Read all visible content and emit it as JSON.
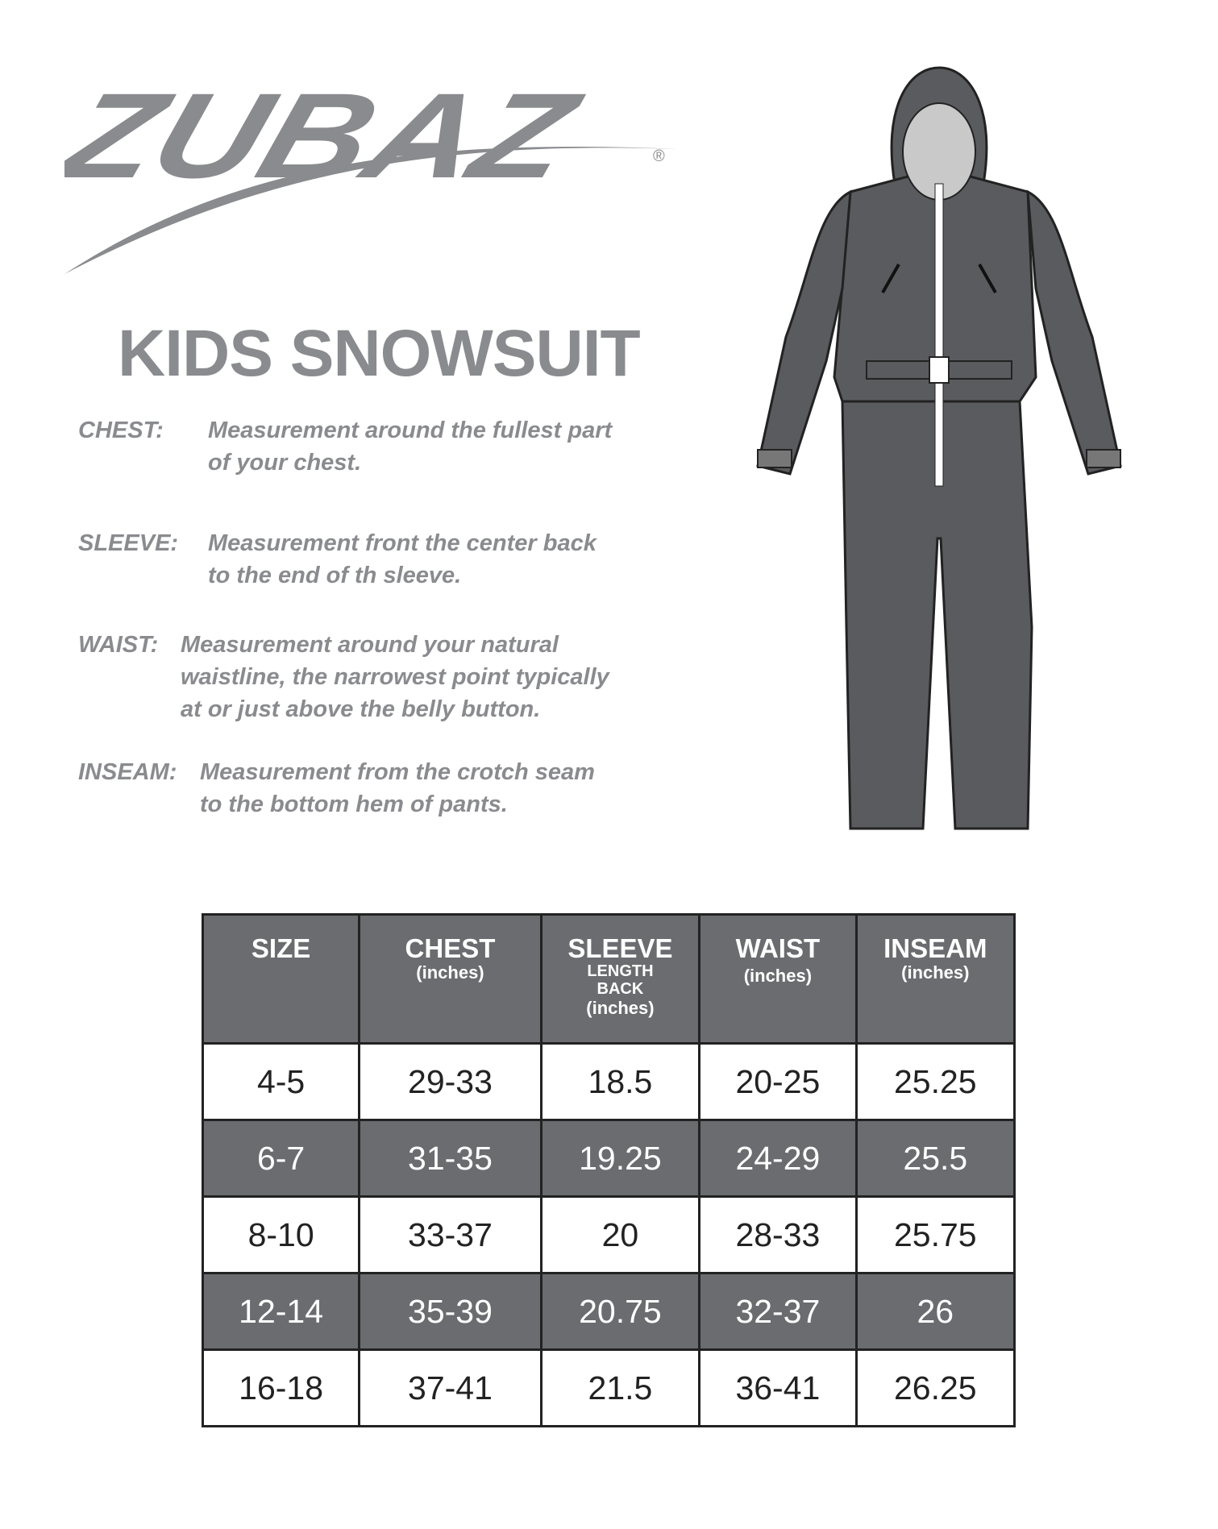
{
  "logo": {
    "text": "ZUBAZ",
    "mark": "®"
  },
  "title": "KIDS SNOWSUIT",
  "definitions": [
    {
      "label": "CHEST:",
      "lines": [
        "Measurement around the fullest part",
        "of your chest."
      ]
    },
    {
      "label": "SLEEVE:",
      "lines": [
        "Measurement front the center back",
        "to the end of th sleeve."
      ]
    },
    {
      "label": "WAIST:",
      "lines": [
        "Measurement around your natural",
        "waistline, the narrowest point typically",
        "at or just above the belly button."
      ]
    },
    {
      "label": "INSEAM:",
      "lines": [
        "Measurement from the crotch seam",
        "to the bottom hem of pants."
      ]
    }
  ],
  "table": {
    "headers": [
      {
        "title": "SIZE"
      },
      {
        "title": "CHEST",
        "unit": "(inches)"
      },
      {
        "title": "SLEEVE",
        "sub1": "LENGTH",
        "sub2": "BACK",
        "unit": "(inches)"
      },
      {
        "title": "WAIST",
        "unit": "(inches)"
      },
      {
        "title": "INSEAM",
        "unit": "(inches)"
      }
    ],
    "rows": [
      [
        "4-5",
        "29-33",
        "18.5",
        "20-25",
        "25.25"
      ],
      [
        "6-7",
        "31-35",
        "19.25",
        "24-29",
        "25.5"
      ],
      [
        "8-10",
        "33-37",
        "20",
        "28-33",
        "25.75"
      ],
      [
        "12-14",
        "35-39",
        "20.75",
        "32-37",
        "26"
      ],
      [
        "16-18",
        "37-41",
        "21.5",
        "36-41",
        "26.25"
      ]
    ]
  },
  "colors": {
    "text_gray": "#8a8b8e",
    "header_gray": "#6b6c70",
    "suit_gray": "#5a5b5e"
  }
}
